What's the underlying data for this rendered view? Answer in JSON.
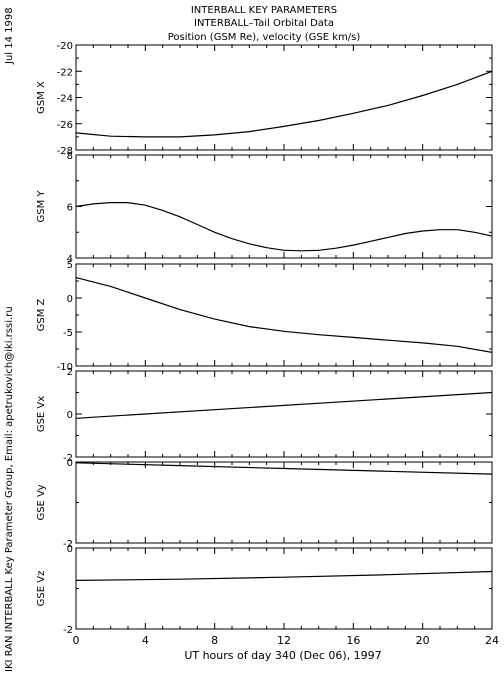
{
  "header": {
    "title_line1": "INTERBALL KEY PARAMETERS",
    "title_line2": "INTERBALL–Tail Orbital Data",
    "title_line3": "Position (GSM Re), velocity (GSE km/s)"
  },
  "side_text": {
    "date": "Jul 14 1998",
    "credit": "IKI RAN INTERBALL Key Parameter Group, Email: apetrukovich@iki.rssi.ru"
  },
  "colors": {
    "background": "#ffffff",
    "ink": "#000000"
  },
  "chart_data": [
    {
      "type": "line",
      "ylabel": "GSM X",
      "ylim": [
        -28,
        -20
      ],
      "yticks": [
        -28,
        -26,
        -24,
        -22,
        -20
      ],
      "x": [
        0,
        2,
        4,
        6,
        8,
        10,
        12,
        14,
        16,
        18,
        20,
        22,
        24
      ],
      "values": [
        -26.7,
        -26.95,
        -27.0,
        -27.0,
        -26.85,
        -26.6,
        -26.2,
        -25.75,
        -25.2,
        -24.6,
        -23.85,
        -23.0,
        -22.0
      ]
    },
    {
      "type": "line",
      "ylabel": "GSM Y",
      "ylim": [
        4,
        8
      ],
      "yticks": [
        4,
        6,
        8
      ],
      "x": [
        0,
        1,
        2,
        3,
        4,
        5,
        6,
        7,
        8,
        9,
        10,
        11,
        12,
        13,
        14,
        15,
        16,
        17,
        18,
        19,
        20,
        21,
        22,
        23,
        24
      ],
      "values": [
        6.0,
        6.1,
        6.15,
        6.15,
        6.05,
        5.85,
        5.6,
        5.3,
        5.0,
        4.75,
        4.55,
        4.4,
        4.3,
        4.28,
        4.3,
        4.38,
        4.5,
        4.65,
        4.8,
        4.95,
        5.05,
        5.1,
        5.1,
        5.0,
        4.85
      ]
    },
    {
      "type": "line",
      "ylabel": "GSM Z",
      "ylim": [
        -10,
        5
      ],
      "yticks": [
        -10,
        -5,
        0,
        5
      ],
      "x": [
        0,
        2,
        4,
        6,
        8,
        10,
        12,
        14,
        16,
        18,
        20,
        22,
        24
      ],
      "values": [
        3.0,
        1.7,
        0.0,
        -1.7,
        -3.1,
        -4.2,
        -4.9,
        -5.4,
        -5.8,
        -6.2,
        -6.6,
        -7.1,
        -8.0
      ]
    },
    {
      "type": "line",
      "ylabel": "GSE Vx",
      "ylim": [
        -2,
        2
      ],
      "yticks": [
        -2,
        0,
        2
      ],
      "x": [
        0,
        24
      ],
      "values": [
        -0.2,
        1.0
      ]
    },
    {
      "type": "line",
      "ylabel": "GSE Vy",
      "ylim": [
        -2,
        0
      ],
      "yticks": [
        -2,
        0
      ],
      "x": [
        0,
        6,
        12,
        18,
        24
      ],
      "values": [
        -0.02,
        -0.09,
        -0.16,
        -0.23,
        -0.3
      ]
    },
    {
      "type": "line",
      "ylabel": "GSE Vz",
      "ylim": [
        -2,
        0
      ],
      "yticks": [
        -2,
        0
      ],
      "x": [
        0,
        6,
        12,
        18,
        24
      ],
      "values": [
        -0.8,
        -0.77,
        -0.72,
        -0.66,
        -0.58
      ]
    }
  ],
  "x_axis": {
    "xlim": [
      0,
      24
    ],
    "ticks": [
      "0",
      "4",
      "8",
      "12",
      "16",
      "20",
      "24"
    ],
    "xlabel": "UT hours of day 340 (Dec 06), 1997"
  }
}
